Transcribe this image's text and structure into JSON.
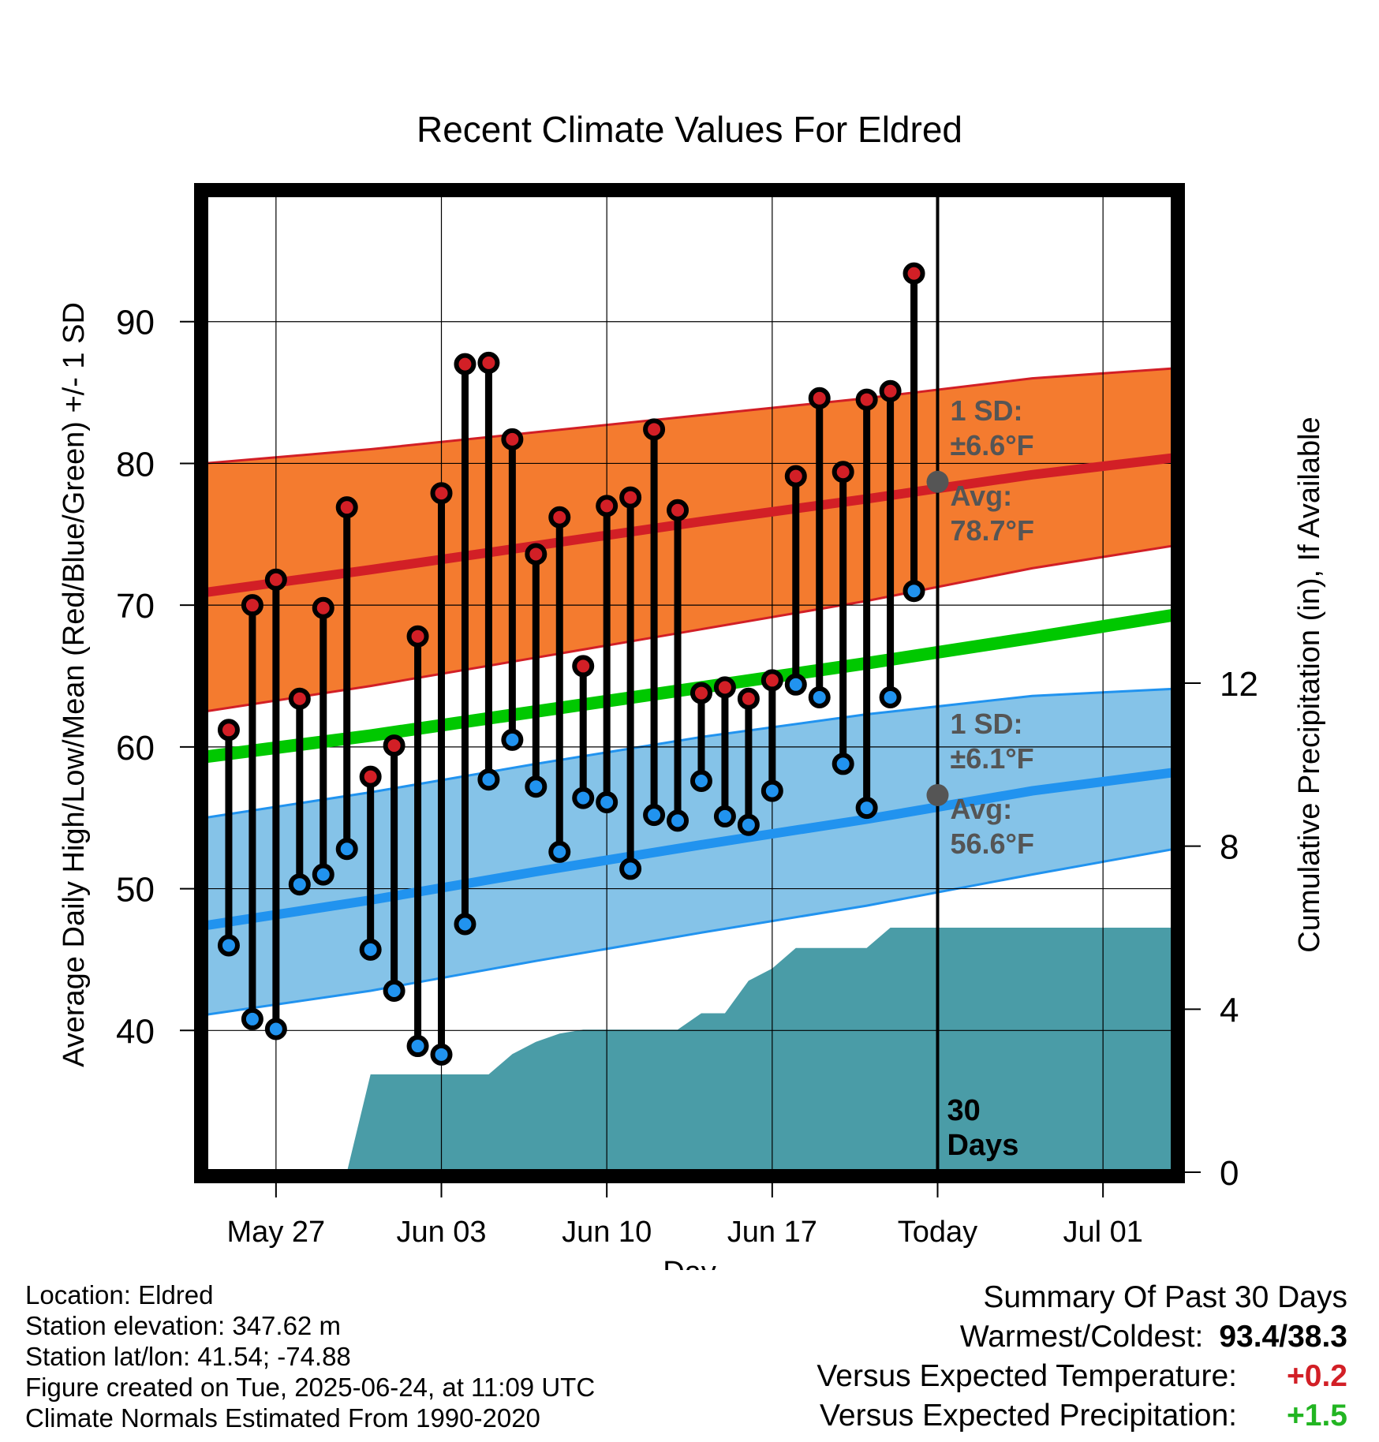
{
  "chart_data": {
    "type": "line",
    "title": "Recent Climate Values For Eldred",
    "xlabel": "Day",
    "ylabel": "Average Daily High/Low/Mean (Red/Blue/Green) +/- 1 SD",
    "ylabel_right": "Cumulative Precipitation (in), If Available",
    "x_tick_labels": [
      "May 27",
      "Jun 03",
      "Jun 10",
      "Jun 17",
      "Today",
      "Jul 01"
    ],
    "x_tick_dates": [
      "2025-05-27",
      "2025-06-03",
      "2025-06-10",
      "2025-06-17",
      "2025-06-24",
      "2025-07-01"
    ],
    "x_range": [
      "2025-05-24",
      "2025-07-04"
    ],
    "ylim": [
      30,
      99
    ],
    "y_ticks": [
      40,
      50,
      60,
      70,
      80,
      90
    ],
    "y2lim": [
      0,
      24
    ],
    "y2_ticks": [
      0,
      4,
      8,
      12
    ],
    "grid": true,
    "today": "2025-06-24",
    "today_label": "30\nDays",
    "colors": {
      "high": "#d21f26",
      "low": "#2193ef",
      "mean": "#00c800",
      "high_band": "#f47b2f",
      "low_band": "#85c3e8",
      "precip": "#4a9ca7",
      "annotation": "#555555",
      "bar": "#000000"
    },
    "normals": {
      "dates": [
        "2025-05-24",
        "2025-05-31",
        "2025-06-07",
        "2025-06-14",
        "2025-06-21",
        "2025-06-28",
        "2025-07-04"
      ],
      "high_avg": [
        70.9,
        72.5,
        74.2,
        75.9,
        77.5,
        79.2,
        80.4
      ],
      "high_upper": [
        80.0,
        81.0,
        82.2,
        83.4,
        84.6,
        86.0,
        86.7
      ],
      "high_lower": [
        62.5,
        64.3,
        66.3,
        68.3,
        70.3,
        72.6,
        74.2
      ],
      "mean_avg": [
        59.3,
        60.8,
        62.5,
        64.2,
        65.9,
        67.7,
        69.3
      ],
      "low_avg": [
        47.4,
        49.2,
        51.2,
        53.1,
        54.9,
        56.9,
        58.2
      ],
      "low_upper": [
        55.0,
        56.8,
        58.8,
        60.7,
        62.3,
        63.6,
        64.1
      ],
      "low_lower": [
        41.1,
        42.8,
        44.9,
        46.9,
        48.8,
        51.0,
        52.8
      ]
    },
    "series": [
      {
        "name": "High",
        "dates": [
          "2025-05-25",
          "2025-05-26",
          "2025-05-27",
          "2025-05-28",
          "2025-05-29",
          "2025-05-30",
          "2025-05-31",
          "2025-06-01",
          "2025-06-02",
          "2025-06-03",
          "2025-06-04",
          "2025-06-05",
          "2025-06-06",
          "2025-06-07",
          "2025-06-08",
          "2025-06-09",
          "2025-06-10",
          "2025-06-11",
          "2025-06-12",
          "2025-06-13",
          "2025-06-14",
          "2025-06-15",
          "2025-06-16",
          "2025-06-17",
          "2025-06-18",
          "2025-06-19",
          "2025-06-20",
          "2025-06-21",
          "2025-06-22",
          "2025-06-23"
        ],
        "values": [
          61.2,
          70.0,
          71.8,
          63.4,
          69.8,
          76.9,
          57.9,
          60.1,
          67.8,
          77.9,
          87.0,
          87.1,
          81.7,
          73.6,
          76.2,
          65.7,
          77.0,
          77.6,
          82.4,
          76.7,
          63.8,
          64.2,
          63.4,
          64.7,
          79.1,
          84.6,
          79.4,
          84.5,
          85.1,
          93.4
        ]
      },
      {
        "name": "Low",
        "dates": [
          "2025-05-25",
          "2025-05-26",
          "2025-05-27",
          "2025-05-28",
          "2025-05-29",
          "2025-05-30",
          "2025-05-31",
          "2025-06-01",
          "2025-06-02",
          "2025-06-03",
          "2025-06-04",
          "2025-06-05",
          "2025-06-06",
          "2025-06-07",
          "2025-06-08",
          "2025-06-09",
          "2025-06-10",
          "2025-06-11",
          "2025-06-12",
          "2025-06-13",
          "2025-06-14",
          "2025-06-15",
          "2025-06-16",
          "2025-06-17",
          "2025-06-18",
          "2025-06-19",
          "2025-06-20",
          "2025-06-21",
          "2025-06-22",
          "2025-06-23"
        ],
        "values": [
          46.0,
          40.8,
          40.1,
          50.3,
          51.0,
          52.8,
          45.7,
          42.8,
          38.9,
          38.3,
          47.5,
          57.7,
          60.5,
          57.2,
          52.6,
          56.4,
          56.1,
          51.4,
          55.2,
          54.8,
          57.6,
          55.1,
          54.5,
          56.9,
          64.4,
          63.5,
          58.8,
          55.7,
          63.5,
          71.0
        ]
      }
    ],
    "precip": {
      "dates": [
        "2025-05-24",
        "2025-05-30",
        "2025-05-31",
        "2025-06-05",
        "2025-06-06",
        "2025-06-07",
        "2025-06-08",
        "2025-06-09",
        "2025-06-10",
        "2025-06-13",
        "2025-06-14",
        "2025-06-15",
        "2025-06-16",
        "2025-06-17",
        "2025-06-18",
        "2025-06-19",
        "2025-06-20",
        "2025-06-21",
        "2025-06-22",
        "2025-07-04"
      ],
      "values": [
        0.0,
        0.0,
        2.4,
        2.4,
        2.9,
        3.2,
        3.4,
        3.5,
        3.5,
        3.5,
        3.9,
        3.9,
        4.7,
        5.0,
        5.5,
        5.5,
        5.5,
        5.5,
        6.0,
        6.0
      ]
    },
    "annotations": {
      "high_sd": "±6.6°F",
      "high_avg": "78.7°F",
      "low_sd": "±6.1°F",
      "low_avg": "56.6°F",
      "high_avg_value": 78.7,
      "low_avg_value": 56.6,
      "sd_prefix": "1 SD:",
      "avg_prefix": "Avg:"
    }
  },
  "footer": {
    "location": "Location: Eldred",
    "elevation": "Station elevation: 347.62 m",
    "latlon": "Station lat/lon: 41.54; -74.88",
    "created": "Figure created on Tue, 2025-06-24, at 11:09 UTC",
    "normals": "Climate Normals Estimated From 1990-2020"
  },
  "summary": {
    "title": "Summary Of Past 30 Days",
    "warmest_label": "Warmest/Coldest:",
    "warmest_value": "93.4/38.3",
    "temp_label": "Versus Expected Temperature:",
    "temp_value": "+0.2",
    "temp_color": "#d21f26",
    "precip_label": "Versus Expected Precipitation:",
    "precip_value": "+1.5",
    "precip_color": "#22b522"
  }
}
